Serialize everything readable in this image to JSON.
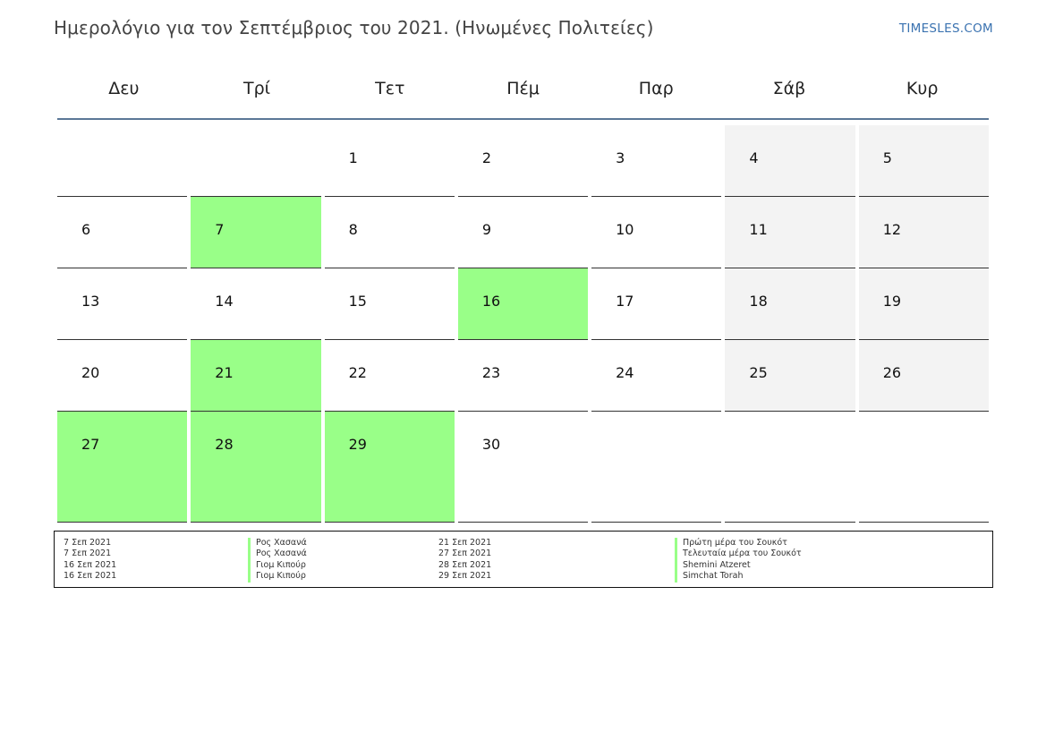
{
  "header": {
    "title": "Ημερολόγιο για τον Σεπτέμβριος του 2021. (Ηνωμένες Πολιτείες)",
    "brand": "TIMESLES.COM"
  },
  "calendar": {
    "weekdays": [
      "Δευ",
      "Τρί",
      "Τετ",
      "Πέμ",
      "Παρ",
      "Σάβ",
      "Κυρ"
    ],
    "weeks": [
      [
        "",
        "",
        "1",
        "2",
        "3",
        "4",
        "5"
      ],
      [
        "6",
        "7",
        "8",
        "9",
        "10",
        "11",
        "12"
      ],
      [
        "13",
        "14",
        "15",
        "16",
        "17",
        "18",
        "19"
      ],
      [
        "20",
        "21",
        "22",
        "23",
        "24",
        "25",
        "26"
      ],
      [
        "27",
        "28",
        "29",
        "30",
        "",
        "",
        ""
      ]
    ]
  },
  "legend": {
    "left": [
      {
        "date": "7 Σεπ 2021",
        "name": "Ρος Χασανά"
      },
      {
        "date": "7 Σεπ 2021",
        "name": "Ρος Χασανά"
      },
      {
        "date": "16 Σεπ 2021",
        "name": "Γιομ Κιπούρ"
      },
      {
        "date": "16 Σεπ 2021",
        "name": "Γιομ Κιπούρ"
      }
    ],
    "right": [
      {
        "date": "21 Σεπ 2021",
        "name": "Πρώτη μέρα του Σουκότ"
      },
      {
        "date": "27 Σεπ 2021",
        "name": "Τελευταία μέρα του Σουκότ"
      },
      {
        "date": "28 Σεπ 2021",
        "name": "Shemini Atzeret"
      },
      {
        "date": "29 Σεπ 2021",
        "name": "Simchat Torah"
      }
    ]
  },
  "colors": {
    "holiday": "#99ff88",
    "weekend": "#f3f3f3",
    "header_rule": "#5b7797",
    "brand": "#3a72b0"
  }
}
